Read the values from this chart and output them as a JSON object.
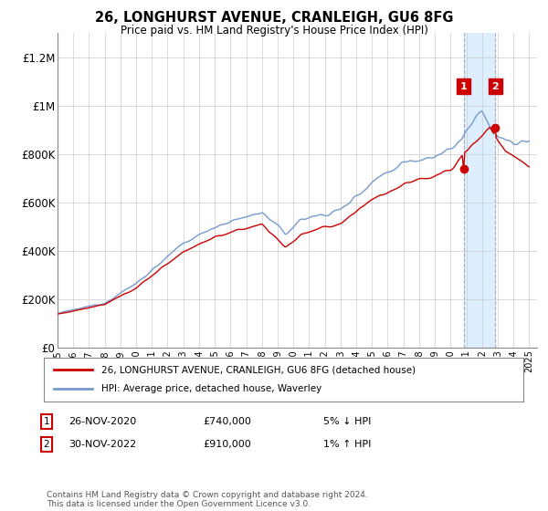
{
  "title": "26, LONGHURST AVENUE, CRANLEIGH, GU6 8FG",
  "subtitle": "Price paid vs. HM Land Registry's House Price Index (HPI)",
  "ylim": [
    0,
    1300000
  ],
  "yticks": [
    0,
    200000,
    400000,
    600000,
    800000,
    1000000,
    1200000
  ],
  "ytick_labels": [
    "£0",
    "£200K",
    "£400K",
    "£600K",
    "£800K",
    "£1M",
    "£1.2M"
  ],
  "x_start_year": 1995,
  "x_end_year": 2025,
  "legend_line1": "26, LONGHURST AVENUE, CRANLEIGH, GU6 8FG (detached house)",
  "legend_line2": "HPI: Average price, detached house, Waverley",
  "transaction1_date": "26-NOV-2020",
  "transaction1_price": 740000,
  "transaction1_label": "1",
  "transaction1_pct": "5% ↓ HPI",
  "transaction2_date": "30-NOV-2022",
  "transaction2_price": 910000,
  "transaction2_label": "2",
  "transaction2_pct": "1% ↑ HPI",
  "footer": "Contains HM Land Registry data © Crown copyright and database right 2024.\nThis data is licensed under the Open Government Licence v3.0.",
  "line_color_red": "#cc0000",
  "line_color_blue": "#7799cc",
  "shade_color": "#ddeeff",
  "marker_box_color": "#cc0000",
  "background_color": "#ffffff",
  "grid_color": "#cccccc"
}
